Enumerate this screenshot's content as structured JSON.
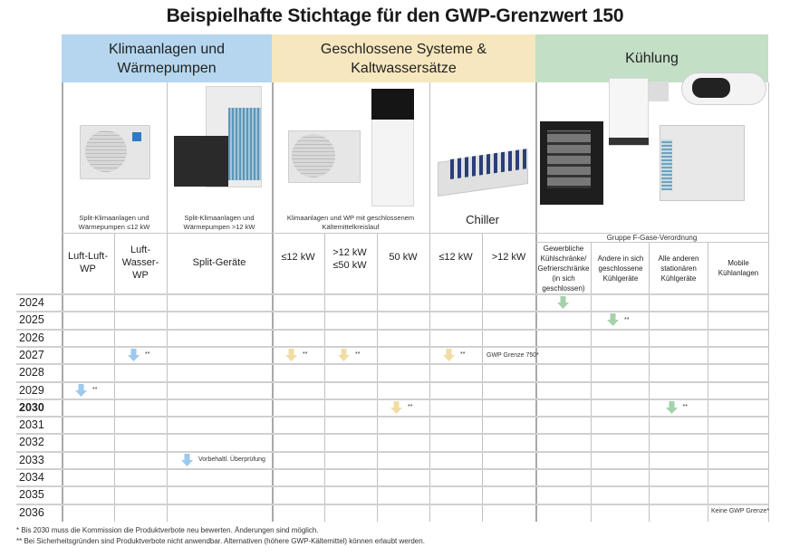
{
  "title": "Beispielhafte Stichtage für den GWP-Grenzwert 150",
  "colors": {
    "blue": "#b5d6ee",
    "yellow": "#f6e7bf",
    "green": "#c3dfc6",
    "arrow_blue": "#9cc9ec",
    "arrow_yellow": "#f2dca4",
    "arrow_green": "#a6d1ab"
  },
  "categories": [
    {
      "label": "Klimaanlagen und Wärmepumpen",
      "color": "blue"
    },
    {
      "label": "Geschlossene Systeme & Kaltwassersätze",
      "color": "yellow"
    },
    {
      "label": "Kühlung",
      "color": "green"
    }
  ],
  "subgroups": {
    "split_small": "Split-Klimaanlagen und Wärmepumpen ≤12 kW",
    "split_large": "Split-Klimaanlagen und Wärmepumpen >12 kW",
    "closed": "Klimaanlagen und WP mit geschlossenem Kältemittelkreislauf",
    "chiller": "Chiller",
    "fgas": "Gruppe F-Gase-Verordnung"
  },
  "images": {
    "split_small": "outdoor-ac-unit-image",
    "split_large": "vrf-heat-pump-image",
    "closed": "monoblock-heat-pump-image",
    "chiller": "chiller-unit-image",
    "cooling": "refrigeration-units-image"
  },
  "columns": [
    "Luft-Luft-WP",
    "Luft-Wasser-WP",
    "Split-Geräte",
    "≤12 kW",
    ">12 kW ≤50 kW",
    "50 kW",
    "≤12 kW",
    ">12 kW",
    "Gewerbliche Kühlschränke/ Gefrierschränke (in sich geschlossen)",
    "Andere in sich geschlossene Kühlgeräte",
    "Alle anderen stationären Kühlgeräte",
    "Mobile Kühlanlagen"
  ],
  "years": [
    "2024",
    "2025",
    "2026",
    "2027",
    "2028",
    "2029",
    "2030",
    "2031",
    "2032",
    "2033",
    "2034",
    "2035",
    "2036"
  ],
  "markers": [
    {
      "year": "2024",
      "column": 8,
      "color": "green",
      "label": ""
    },
    {
      "year": "2025",
      "column": 9,
      "color": "green",
      "label": "**"
    },
    {
      "year": "2027",
      "column": 1,
      "color": "blue",
      "label": "**"
    },
    {
      "year": "2027",
      "column": 3,
      "color": "yellow",
      "label": "**"
    },
    {
      "year": "2027",
      "column": 4,
      "color": "yellow",
      "label": "**"
    },
    {
      "year": "2027",
      "column": 6,
      "color": "yellow",
      "label": "**"
    },
    {
      "year": "2029",
      "column": 0,
      "color": "blue",
      "label": "**"
    },
    {
      "year": "2030",
      "column": 5,
      "color": "yellow",
      "label": "**"
    },
    {
      "year": "2030",
      "column": 10,
      "color": "green",
      "label": "**"
    },
    {
      "year": "2033",
      "column": 2,
      "color": "blue",
      "label": "Vorbehaltl. Überprüfung"
    }
  ],
  "notes": {
    "gwp750": "GWP Grenze 750*",
    "no_limit": "Keine GWP Grenze*"
  },
  "footnotes": [
    "* Bis 2030 muss die Kommission die Produktverbote neu bewerten. Änderungen sind möglich.",
    "** Bei Sicherheitsgründen sind Produktverbote nicht anwendbar. Alternativen (höhere GWP-Kältemittel) können erlaubt werden."
  ]
}
